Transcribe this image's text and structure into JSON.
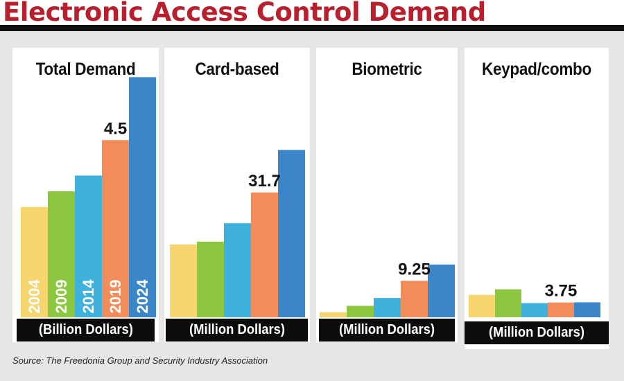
{
  "title": "Electronic Access Control Demand",
  "source": "Source: The Freedonia Group and Security Industry Association",
  "colors": {
    "title_red": "#b8202e",
    "bar_colors": [
      "#f7d56e",
      "#8dc63f",
      "#3eb1dc",
      "#f28c5a",
      "#3a86c8"
    ]
  },
  "chart_data": [
    {
      "type": "bar",
      "title": "Total Demand",
      "unit_label": "(Billion Dollars)",
      "categories": [
        "2004",
        "2009",
        "2014",
        "2019",
        "2024"
      ],
      "values": [
        2.8,
        3.2,
        3.6,
        4.5,
        6.1
      ],
      "data_labels": [
        {
          "index": 3,
          "text": "4.5"
        }
      ],
      "category_labels_on_bars": true,
      "ylim": [
        0,
        6.3
      ]
    },
    {
      "type": "bar",
      "title": "Card-based",
      "unit_label": "(Million Dollars)",
      "categories": [
        "2004",
        "2009",
        "2014",
        "2019",
        "2024"
      ],
      "values": [
        18.5,
        19.2,
        23.9,
        31.7,
        42.5
      ],
      "data_labels": [
        {
          "index": 3,
          "text": "31.7"
        }
      ],
      "category_labels_on_bars": false,
      "ylim": [
        0,
        63
      ]
    },
    {
      "type": "bar",
      "title": "Biometric",
      "unit_label": "(Million Dollars)",
      "categories": [
        "2004",
        "2009",
        "2014",
        "2019",
        "2024"
      ],
      "values": [
        1.3,
        2.9,
        4.9,
        9.25,
        13.4
      ],
      "data_labels": [
        {
          "index": 3,
          "text": "9.25"
        }
      ],
      "category_labels_on_bars": false,
      "ylim": [
        0,
        63
      ]
    },
    {
      "type": "bar",
      "title": "Keypad/combo",
      "unit_label": "(Million Dollars)",
      "categories": [
        "2004",
        "2009",
        "2014",
        "2019",
        "2024"
      ],
      "values": [
        5.7,
        7.1,
        3.6,
        3.75,
        3.8
      ],
      "data_labels": [
        {
          "index": 3,
          "text": "3.75"
        }
      ],
      "category_labels_on_bars": false,
      "ylim": [
        0,
        63
      ]
    }
  ]
}
